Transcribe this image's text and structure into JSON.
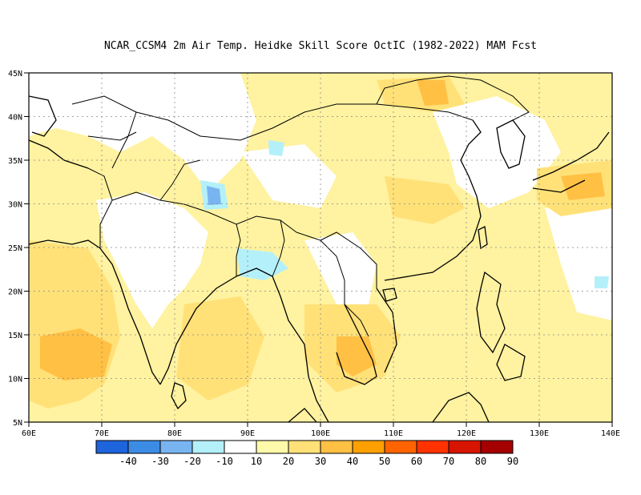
{
  "title": "NCAR_CCSM4  2m Air Temp. Heidke Skill Score OctIC (1982-2022) MAM Fcst",
  "map": {
    "lat_labels": [
      "45N",
      "40N",
      "35N",
      "30N",
      "25N",
      "20N",
      "15N",
      "10N",
      "5N"
    ],
    "lon_labels": [
      "60E",
      "70E",
      "80E",
      "90E",
      "100E",
      "110E",
      "120E",
      "130E",
      "140E"
    ],
    "grid": "dotted"
  },
  "colorbar": {
    "labels": [
      "-40",
      "-30",
      "-20",
      "-10",
      "10",
      "20",
      "30",
      "40",
      "50",
      "60",
      "70",
      "80",
      "90"
    ],
    "colors": [
      "#1e64dc",
      "#3c8ce6",
      "#78b4f0",
      "#b4f0fa",
      "#ffffff",
      "#fffaaa",
      "#ffe178",
      "#ffc044",
      "#ffa000",
      "#ff6400",
      "#ff3200",
      "#d71400",
      "#a50000"
    ]
  }
}
